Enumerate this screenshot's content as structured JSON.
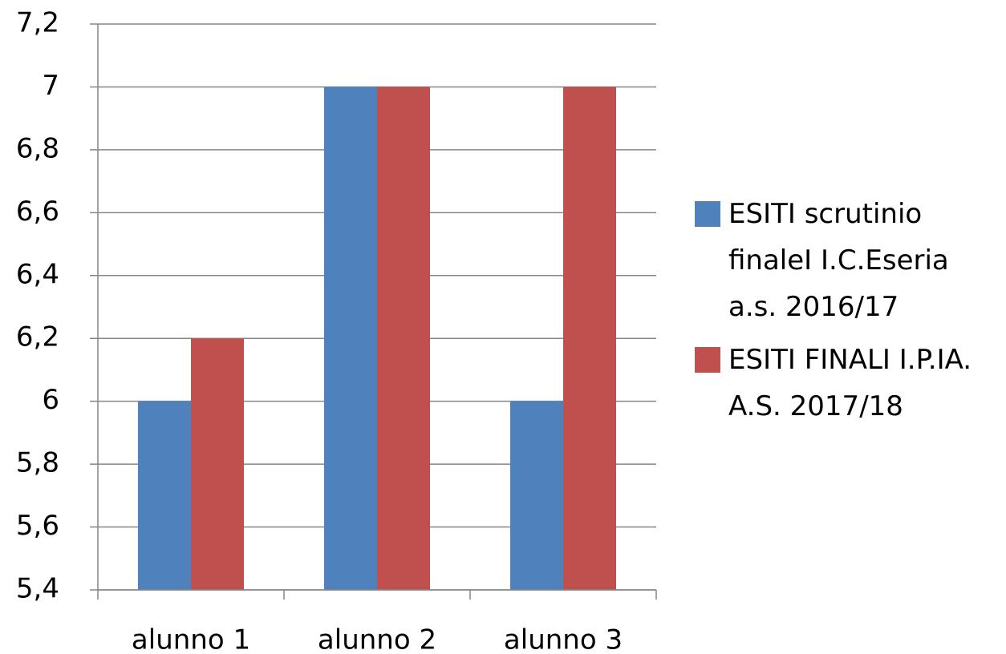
{
  "chart_data": {
    "type": "bar",
    "categories": [
      "alunno 1",
      "alunno 2",
      "alunno 3"
    ],
    "series": [
      {
        "name": "ESITI scrutinio finaleI I.C.Eseria a.s. 2016/17",
        "color": "#4f81bd",
        "values": [
          6,
          7,
          6
        ]
      },
      {
        "name": "ESITI FINALI I.P.IA. A.S. 2017/18",
        "color": "#c0504d",
        "values": [
          6.2,
          7,
          7
        ]
      }
    ],
    "ylim": [
      5.4,
      7.2
    ],
    "yticks": [
      {
        "value": 5.4,
        "label": "5,4"
      },
      {
        "value": 5.6,
        "label": "5,6"
      },
      {
        "value": 5.8,
        "label": "5,8"
      },
      6,
      {
        "value": 6.2,
        "label": "6,2"
      },
      {
        "value": 6.4,
        "label": "6,4"
      },
      {
        "value": 6.6,
        "label": "6,6"
      },
      {
        "value": 6.8,
        "label": "6,8"
      },
      7,
      {
        "value": 7.2,
        "label": "7,2"
      }
    ],
    "grid": true,
    "legend": "right"
  }
}
